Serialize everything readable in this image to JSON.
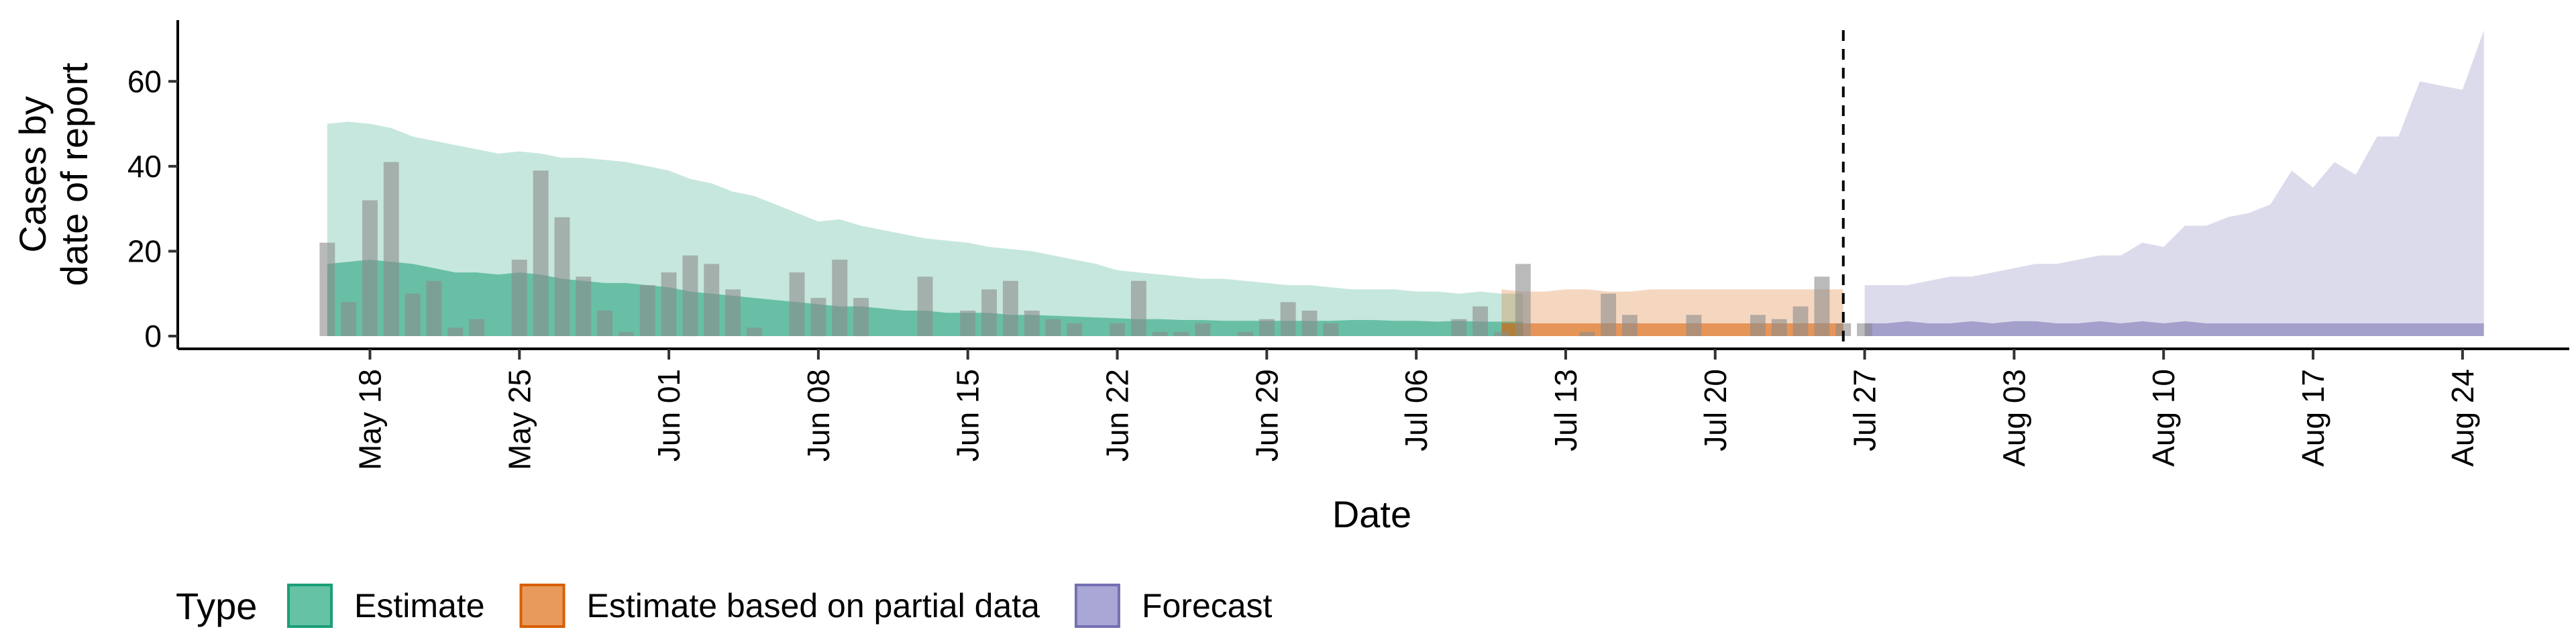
{
  "chart_data": {
    "type": "area",
    "xlabel": "Date",
    "ylabel_lines": [
      "Cases by",
      "date of report"
    ],
    "yticks": [
      0,
      20,
      40,
      60
    ],
    "ylim": [
      -3,
      76
    ],
    "xlim": [
      "2020-05-09",
      "2020-08-29"
    ],
    "xticks": [
      {
        "date": "2020-05-18",
        "label": "May 18"
      },
      {
        "date": "2020-05-25",
        "label": "May 25"
      },
      {
        "date": "2020-06-01",
        "label": "Jun 01"
      },
      {
        "date": "2020-06-08",
        "label": "Jun 08"
      },
      {
        "date": "2020-06-15",
        "label": "Jun 15"
      },
      {
        "date": "2020-06-22",
        "label": "Jun 22"
      },
      {
        "date": "2020-06-29",
        "label": "Jun 29"
      },
      {
        "date": "2020-07-06",
        "label": "Jul 06"
      },
      {
        "date": "2020-07-13",
        "label": "Jul 13"
      },
      {
        "date": "2020-07-20",
        "label": "Jul 20"
      },
      {
        "date": "2020-07-27",
        "label": "Jul 27"
      },
      {
        "date": "2020-08-03",
        "label": "Aug 03"
      },
      {
        "date": "2020-08-10",
        "label": "Aug 10"
      },
      {
        "date": "2020-08-17",
        "label": "Aug 17"
      },
      {
        "date": "2020-08-24",
        "label": "Aug 24"
      }
    ],
    "vline_date": "2020-07-26",
    "legend": {
      "title": "Type",
      "position": "bottom",
      "items": [
        {
          "label": "Estimate",
          "fill": "#66c2a5",
          "stroke": "#1b9e77"
        },
        {
          "label": "Estimate based on partial data",
          "fill": "#e89a5c",
          "stroke": "#d95f02"
        },
        {
          "label": "Forecast",
          "fill": "#a8a7d5",
          "stroke": "#7570b3"
        }
      ]
    },
    "colors": {
      "estimate": "#1b9e77",
      "partial": "#d95f02",
      "forecast": "#7570b3",
      "bars": "#8c8c8c"
    },
    "reported_cases": {
      "start_date": "2020-05-16",
      "values": [
        22,
        8,
        32,
        41,
        10,
        13,
        2,
        4,
        0,
        18,
        39,
        28,
        14,
        6,
        1,
        12,
        15,
        19,
        17,
        11,
        2,
        0,
        15,
        9,
        18,
        9,
        0,
        0,
        14,
        0,
        6,
        11,
        13,
        6,
        4,
        3,
        0,
        3,
        13,
        1,
        1,
        3,
        0,
        1,
        4,
        8,
        6,
        3,
        0,
        0,
        0,
        0,
        0,
        4,
        7,
        1,
        17,
        0,
        0,
        1,
        10,
        5,
        0,
        0,
        5,
        0,
        0,
        5,
        4,
        7,
        14,
        3,
        3
      ]
    },
    "series": [
      {
        "type": "Estimate",
        "start_date": "2020-05-16",
        "upper": [
          50,
          50.5,
          50,
          49,
          47,
          46,
          45,
          44,
          43,
          43.5,
          43,
          42,
          42,
          41.5,
          41,
          40,
          39,
          37,
          36,
          34,
          33,
          31,
          29,
          27,
          27.5,
          26,
          25,
          24,
          23,
          22.5,
          22,
          21,
          20.5,
          20,
          19,
          18,
          17,
          15.5,
          15,
          14.5,
          14,
          13.5,
          13.5,
          13,
          12.5,
          12,
          12,
          11.5,
          11,
          11,
          11,
          10.5,
          10.5,
          10,
          10.5,
          10,
          10
        ],
        "mid": [
          17,
          17.5,
          18,
          17.5,
          17,
          16,
          15,
          15,
          14.5,
          15,
          14.5,
          13.5,
          13,
          12.5,
          12.5,
          12,
          11.5,
          10.5,
          10,
          9.5,
          9,
          8.5,
          8,
          7.5,
          7,
          7,
          6.5,
          6,
          6,
          5.5,
          5.5,
          5.5,
          5,
          5,
          4.8,
          4.6,
          4.4,
          4.2,
          4,
          4,
          3.8,
          3.8,
          3.6,
          3.6,
          3.6,
          3.6,
          3.6,
          3.6,
          3.8,
          3.8,
          3.6,
          3.6,
          3.4,
          3.6,
          3.4,
          3.4,
          3.4
        ],
        "lower": [
          0,
          0,
          0,
          0,
          0,
          0,
          0,
          0,
          0,
          0,
          0,
          0,
          0,
          0,
          0,
          0,
          0,
          0,
          0,
          0,
          0,
          0,
          0,
          0,
          0,
          0,
          0,
          0,
          0,
          0,
          0,
          0,
          0,
          0,
          0,
          0,
          0,
          0,
          0,
          0,
          0,
          0,
          0,
          0,
          0,
          0,
          0,
          0,
          0,
          0,
          0,
          0,
          0,
          0,
          0,
          0,
          0
        ]
      },
      {
        "type": "Estimate based on partial data",
        "start_date": "2020-07-10",
        "upper": [
          11,
          10.5,
          10.5,
          11,
          11,
          10.5,
          10.5,
          11,
          11,
          11,
          11,
          11,
          11,
          11,
          11,
          11,
          11
        ],
        "mid": [
          3,
          3,
          3,
          3,
          3,
          3,
          3,
          3,
          3,
          3,
          3,
          3,
          3,
          3,
          3,
          3,
          3
        ],
        "lower": [
          0,
          0,
          0,
          0,
          0,
          0,
          0,
          0,
          0,
          0,
          0,
          0,
          0,
          0,
          0,
          0,
          0
        ]
      },
      {
        "type": "Forecast",
        "start_date": "2020-07-27",
        "upper": [
          12,
          12,
          12,
          13,
          14,
          14,
          15,
          16,
          17,
          17,
          18,
          19,
          19,
          22,
          21,
          26,
          26,
          28,
          29,
          31,
          39,
          35,
          41,
          38,
          47,
          47,
          60,
          59,
          58,
          72
        ],
        "mid": [
          3,
          3,
          3.5,
          3,
          3,
          3.5,
          3,
          3.5,
          3.5,
          3,
          3,
          3.5,
          3,
          3.5,
          3,
          3.5,
          3,
          3,
          3,
          3,
          3,
          3,
          3,
          3,
          3,
          3,
          3,
          3,
          3,
          3
        ],
        "lower": [
          0,
          0,
          0,
          0,
          0,
          0,
          0,
          0,
          0,
          0,
          0,
          0,
          0,
          0,
          0,
          0,
          0,
          0,
          0,
          0,
          0,
          0,
          0,
          0,
          0,
          0,
          0,
          0,
          0,
          0
        ]
      }
    ]
  }
}
